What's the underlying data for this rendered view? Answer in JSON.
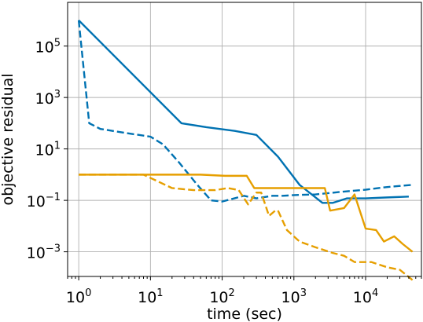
{
  "chart_data": {
    "type": "line",
    "title": "",
    "xlabel": "time (sec)",
    "ylabel": "objective residual",
    "xscale": "log",
    "yscale": "log",
    "xlim": [
      0.7,
      60000
    ],
    "ylim": [
      0.00011,
      5000000
    ],
    "grid": true,
    "xticks": [
      {
        "value": 1,
        "base": "10",
        "exp": "0"
      },
      {
        "value": 10,
        "base": "10",
        "exp": "1"
      },
      {
        "value": 100,
        "base": "10",
        "exp": "2"
      },
      {
        "value": 1000,
        "base": "10",
        "exp": "3"
      },
      {
        "value": 10000,
        "base": "10",
        "exp": "4"
      }
    ],
    "yticks": [
      {
        "value": 100000,
        "base": "10",
        "exp": "5"
      },
      {
        "value": 1000,
        "base": "10",
        "exp": "3"
      },
      {
        "value": 10,
        "base": "10",
        "exp": "1"
      },
      {
        "value": 0.1,
        "base": "10",
        "exp": "−1"
      },
      {
        "value": 0.001,
        "base": "10",
        "exp": "−3"
      }
    ],
    "series": [
      {
        "color": "#0072b2",
        "dash": "solid",
        "x": [
          1,
          27,
          60,
          150,
          300,
          600,
          1200,
          2500,
          3500,
          5500,
          10000,
          20000,
          40000
        ],
        "y": [
          1000000,
          100,
          70,
          50,
          35,
          5,
          0.4,
          0.08,
          0.08,
          0.12,
          0.12,
          0.13,
          0.14
        ]
      },
      {
        "color": "#0072b2",
        "dash": "dashed",
        "x": [
          1,
          1.4,
          2,
          5,
          10,
          15,
          25,
          45,
          70,
          100,
          200,
          300,
          500,
          700,
          1000,
          2000,
          3000,
          5000,
          10000,
          20000,
          45000
        ],
        "y": [
          1000000,
          100,
          60,
          40,
          30,
          15,
          3,
          0.4,
          0.1,
          0.09,
          0.15,
          0.12,
          0.15,
          0.15,
          0.16,
          0.17,
          0.19,
          0.22,
          0.26,
          0.33,
          0.4
        ]
      },
      {
        "color": "#e69f00",
        "dash": "solid",
        "x": [
          1,
          10,
          50,
          110,
          220,
          280,
          500,
          1000,
          2700,
          3200,
          5000,
          7000,
          10000,
          14000,
          18000,
          25000,
          33000,
          45000
        ],
        "y": [
          1,
          1,
          1,
          0.9,
          0.9,
          0.3,
          0.3,
          0.3,
          0.3,
          0.04,
          0.05,
          0.17,
          0.008,
          0.007,
          0.0025,
          0.004,
          0.002,
          0.001
        ]
      },
      {
        "color": "#e69f00",
        "dash": "dashed",
        "x": [
          1,
          8,
          20,
          40,
          80,
          120,
          170,
          230,
          300,
          350,
          450,
          550,
          600,
          800,
          1200,
          2000,
          3500,
          5000,
          7000,
          12000,
          20000,
          30000,
          45000
        ],
        "y": [
          1,
          1,
          0.3,
          0.25,
          0.25,
          0.3,
          0.25,
          0.07,
          0.2,
          0.2,
          0.025,
          0.04,
          0.04,
          0.007,
          0.0025,
          0.0015,
          0.0009,
          0.0007,
          0.0004,
          0.0004,
          0.00025,
          0.0002,
          8e-05
        ]
      }
    ]
  }
}
